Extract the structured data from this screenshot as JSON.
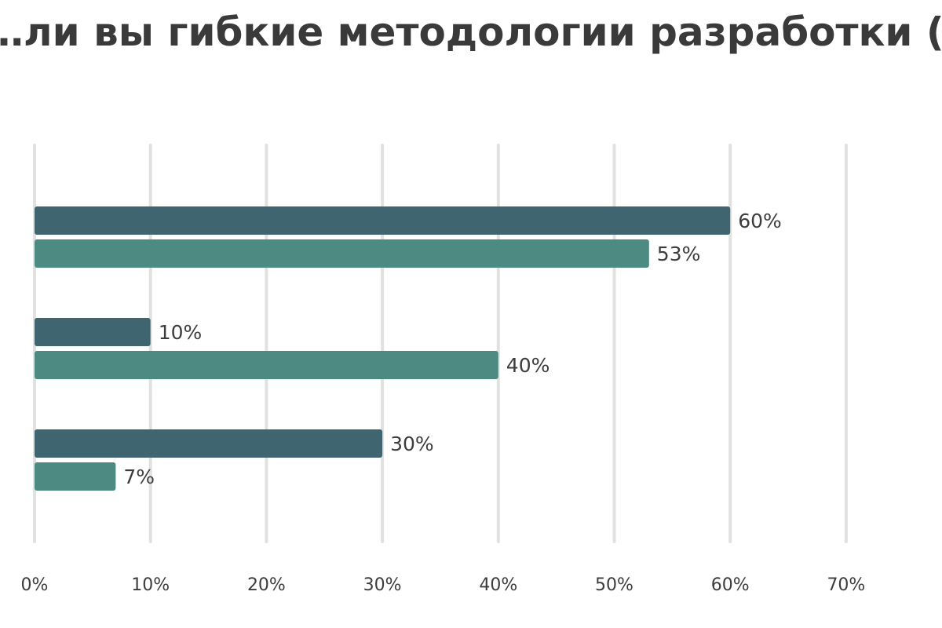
{
  "chart_data": {
    "type": "bar",
    "orientation": "horizontal",
    "title": "…ли вы гибкие методологии разработки (Ag…",
    "xlabel": "",
    "ylabel": "",
    "xlim": [
      0,
      70
    ],
    "x_ticks": [
      "0%",
      "10%",
      "20%",
      "30%",
      "40%",
      "50%",
      "60%",
      "70%"
    ],
    "grid": true,
    "groups": [
      "",
      "",
      ""
    ],
    "series": [
      {
        "color": "#3f6570",
        "values": [
          60,
          10,
          30
        ],
        "labels": [
          "60%",
          "10%",
          "30%"
        ]
      },
      {
        "color": "#4c8a82",
        "values": [
          53,
          40,
          7
        ],
        "labels": [
          "53%",
          "40%",
          "7%"
        ]
      }
    ]
  }
}
